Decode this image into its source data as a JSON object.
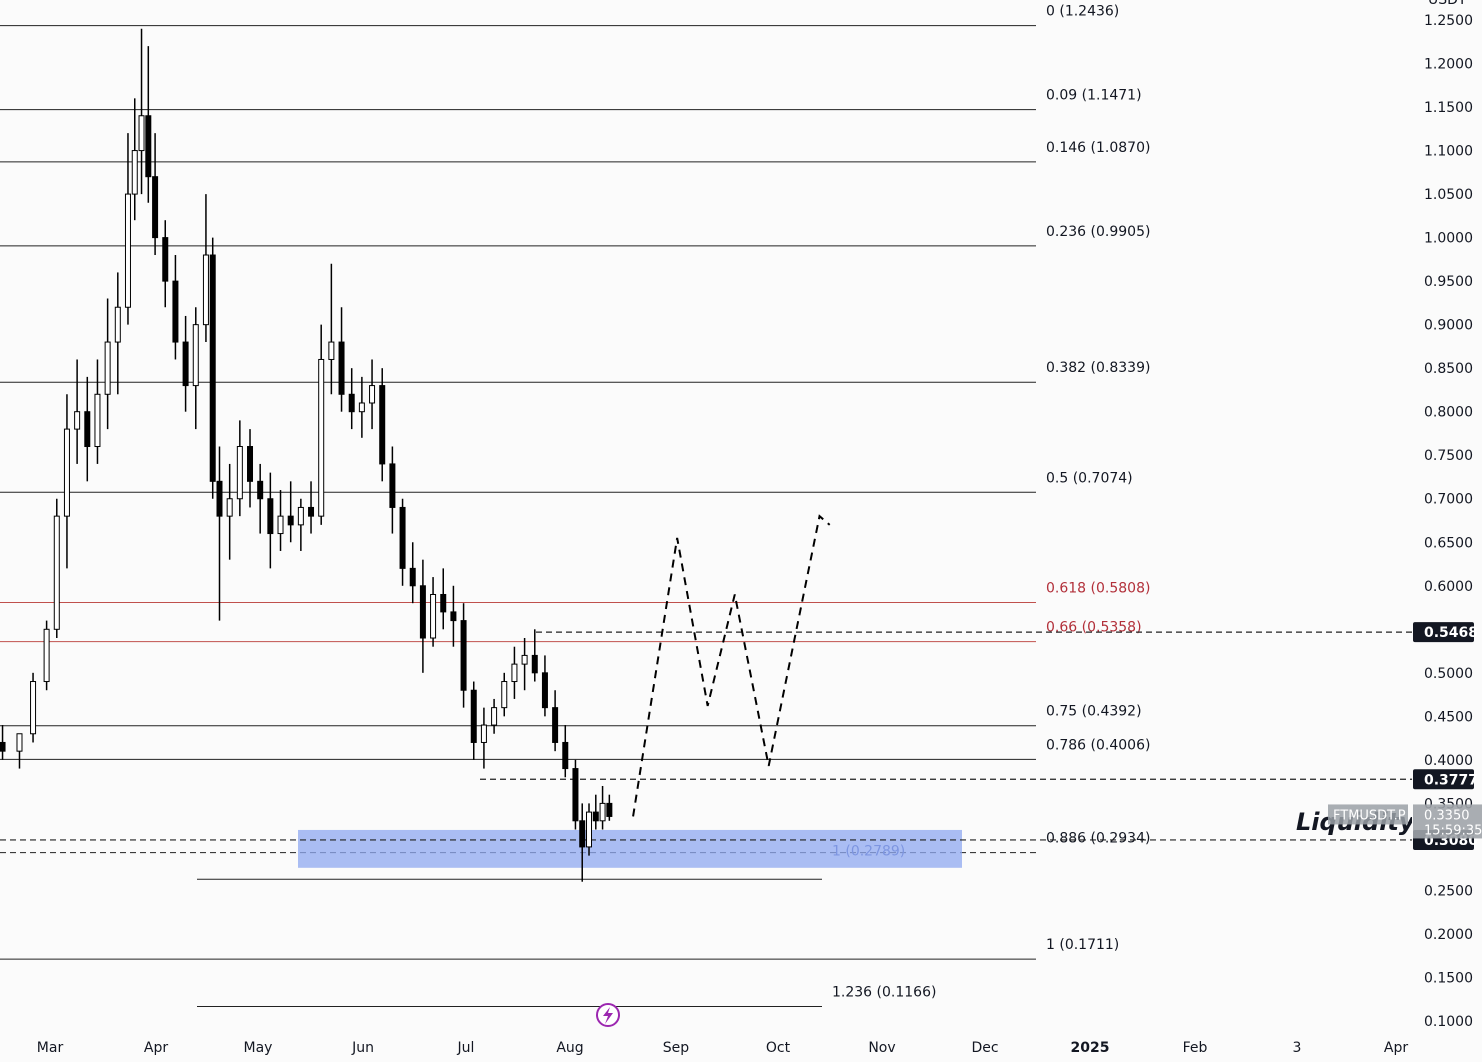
{
  "chart_data": {
    "type": "candlestick",
    "symbol": "FTMUSDT.P",
    "current_price": "0.3350",
    "countdown": "15:59:35",
    "quote_currency": "USDT",
    "y_axis": {
      "ticks": [
        "1.2500",
        "1.2000",
        "1.1500",
        "1.1000",
        "1.0500",
        "1.0000",
        "0.9500",
        "0.9000",
        "0.8500",
        "0.8000",
        "0.7500",
        "0.7000",
        "0.6500",
        "0.6000",
        "0.5500",
        "0.5000",
        "0.4500",
        "0.4000",
        "0.3500",
        "0.3000",
        "0.2500",
        "0.2000",
        "0.1500",
        "0.1000"
      ],
      "ylim": [
        0.09,
        1.26
      ],
      "hidden_ticks": [
        "0.5500",
        "0.3000"
      ]
    },
    "x_axis": {
      "labels": [
        "Mar",
        "Apr",
        "May",
        "Jun",
        "Jul",
        "Aug",
        "Sep",
        "Oct",
        "Nov",
        "Dec",
        "2025",
        "Feb",
        "3",
        "Apr"
      ],
      "bold_labels": [
        "2025"
      ]
    },
    "fib_levels": [
      {
        "ratio": "0",
        "value": 1.2436,
        "label": "0 (1.2436)",
        "color": "#131722"
      },
      {
        "ratio": "0.09",
        "value": 1.1471,
        "label": "0.09 (1.1471)",
        "color": "#131722"
      },
      {
        "ratio": "0.146",
        "value": 1.087,
        "label": "0.146 (1.0870)",
        "color": "#131722"
      },
      {
        "ratio": "0.236",
        "value": 0.9905,
        "label": "0.236 (0.9905)",
        "color": "#131722"
      },
      {
        "ratio": "0.382",
        "value": 0.8339,
        "label": "0.382 (0.8339)",
        "color": "#131722"
      },
      {
        "ratio": "0.5",
        "value": 0.7074,
        "label": "0.5 (0.7074)",
        "color": "#131722"
      },
      {
        "ratio": "0.618",
        "value": 0.5808,
        "label": "0.618 (0.5808)",
        "color": "#b2303a"
      },
      {
        "ratio": "0.66",
        "value": 0.5358,
        "label": "0.66 (0.5358)",
        "color": "#b2303a"
      },
      {
        "ratio": "0.75",
        "value": 0.4392,
        "label": "0.75 (0.4392)",
        "color": "#131722"
      },
      {
        "ratio": "0.786",
        "value": 0.4006,
        "label": "0.786 (0.4006)",
        "color": "#131722"
      },
      {
        "ratio": "0.886",
        "value": 0.2934,
        "label": "0.886 (0.2934)",
        "color": "#131722"
      },
      {
        "ratio": "1",
        "value": 0.1711,
        "label": "1 (0.1711)",
        "color": "#131722"
      }
    ],
    "second_fib_levels": [
      {
        "ratio": "1",
        "value": 0.2789,
        "label": "1 (0.2789)",
        "color": "#4a5db0"
      },
      {
        "ratio": "1.236",
        "value": 0.1166,
        "label": "1.236 (0.1166)",
        "color": "#131722"
      }
    ],
    "horizontal_levels": [
      {
        "value": 0.5468,
        "label": "0.5468"
      },
      {
        "value": 0.3777,
        "label": "0.3777"
      },
      {
        "value": 0.308,
        "label": "0.3080"
      }
    ],
    "demand_zone": {
      "top": 0.308,
      "bottom": 0.276,
      "color": "#8fa8f0"
    },
    "annotation": "Liquidity",
    "projection_path": [
      {
        "date": "2024-08-20",
        "price": 0.335
      },
      {
        "date": "2024-09-02",
        "price": 0.655
      },
      {
        "date": "2024-09-11",
        "price": 0.462
      },
      {
        "date": "2024-09-19",
        "price": 0.59
      },
      {
        "date": "2024-09-29",
        "price": 0.393
      },
      {
        "date": "2024-10-14",
        "price": 0.68
      },
      {
        "date": "2024-10-17",
        "price": 0.67
      }
    ],
    "candles_ohlc_approx": [
      [
        "2024-02-01",
        0.42,
        0.44,
        0.39,
        0.41
      ],
      [
        "2024-02-06",
        0.41,
        0.43,
        0.39,
        0.4
      ],
      [
        "2024-02-11",
        0.4,
        0.43,
        0.39,
        0.42
      ],
      [
        "2024-02-16",
        0.42,
        0.44,
        0.4,
        0.41
      ],
      [
        "2024-02-21",
        0.41,
        0.43,
        0.39,
        0.43
      ],
      [
        "2024-02-25",
        0.43,
        0.5,
        0.42,
        0.49
      ],
      [
        "2024-02-29",
        0.49,
        0.56,
        0.48,
        0.55
      ],
      [
        "2024-03-03",
        0.55,
        0.7,
        0.54,
        0.68
      ],
      [
        "2024-03-06",
        0.68,
        0.82,
        0.62,
        0.78
      ],
      [
        "2024-03-09",
        0.78,
        0.86,
        0.74,
        0.8
      ],
      [
        "2024-03-12",
        0.8,
        0.84,
        0.72,
        0.76
      ],
      [
        "2024-03-15",
        0.76,
        0.86,
        0.74,
        0.82
      ],
      [
        "2024-03-18",
        0.82,
        0.93,
        0.78,
        0.88
      ],
      [
        "2024-03-21",
        0.88,
        0.96,
        0.82,
        0.92
      ],
      [
        "2024-03-24",
        0.92,
        1.12,
        0.9,
        1.05
      ],
      [
        "2024-03-26",
        1.05,
        1.16,
        1.02,
        1.1
      ],
      [
        "2024-03-28",
        1.1,
        1.24,
        1.05,
        1.14
      ],
      [
        "2024-03-30",
        1.14,
        1.22,
        1.04,
        1.07
      ],
      [
        "2024-04-01",
        1.07,
        1.12,
        0.98,
        1.0
      ],
      [
        "2024-04-04",
        1.0,
        1.02,
        0.92,
        0.95
      ],
      [
        "2024-04-07",
        0.95,
        0.98,
        0.86,
        0.88
      ],
      [
        "2024-04-10",
        0.88,
        0.91,
        0.8,
        0.83
      ],
      [
        "2024-04-13",
        0.83,
        0.92,
        0.78,
        0.9
      ],
      [
        "2024-04-16",
        0.9,
        1.05,
        0.88,
        0.98
      ],
      [
        "2024-04-18",
        0.98,
        1.0,
        0.7,
        0.72
      ],
      [
        "2024-04-20",
        0.72,
        0.76,
        0.56,
        0.68
      ],
      [
        "2024-04-23",
        0.68,
        0.74,
        0.63,
        0.7
      ],
      [
        "2024-04-26",
        0.7,
        0.79,
        0.68,
        0.76
      ],
      [
        "2024-04-29",
        0.76,
        0.78,
        0.69,
        0.72
      ],
      [
        "2024-05-02",
        0.72,
        0.74,
        0.66,
        0.7
      ],
      [
        "2024-05-05",
        0.7,
        0.73,
        0.62,
        0.66
      ],
      [
        "2024-05-08",
        0.66,
        0.71,
        0.64,
        0.68
      ],
      [
        "2024-05-11",
        0.68,
        0.72,
        0.65,
        0.67
      ],
      [
        "2024-05-14",
        0.67,
        0.7,
        0.64,
        0.69
      ],
      [
        "2024-05-17",
        0.69,
        0.72,
        0.66,
        0.68
      ],
      [
        "2024-05-20",
        0.68,
        0.9,
        0.67,
        0.86
      ],
      [
        "2024-05-23",
        0.86,
        0.97,
        0.82,
        0.88
      ],
      [
        "2024-05-26",
        0.88,
        0.92,
        0.8,
        0.82
      ],
      [
        "2024-05-29",
        0.82,
        0.85,
        0.78,
        0.8
      ],
      [
        "2024-06-01",
        0.8,
        0.84,
        0.77,
        0.81
      ],
      [
        "2024-06-04",
        0.81,
        0.86,
        0.78,
        0.83
      ],
      [
        "2024-06-07",
        0.83,
        0.85,
        0.72,
        0.74
      ],
      [
        "2024-06-10",
        0.74,
        0.76,
        0.66,
        0.69
      ],
      [
        "2024-06-13",
        0.69,
        0.7,
        0.6,
        0.62
      ],
      [
        "2024-06-16",
        0.62,
        0.65,
        0.58,
        0.6
      ],
      [
        "2024-06-19",
        0.6,
        0.63,
        0.5,
        0.54
      ],
      [
        "2024-06-22",
        0.54,
        0.61,
        0.53,
        0.59
      ],
      [
        "2024-06-25",
        0.59,
        0.62,
        0.55,
        0.57
      ],
      [
        "2024-06-28",
        0.57,
        0.6,
        0.53,
        0.56
      ],
      [
        "2024-07-01",
        0.56,
        0.58,
        0.46,
        0.48
      ],
      [
        "2024-07-04",
        0.48,
        0.49,
        0.4,
        0.42
      ],
      [
        "2024-07-07",
        0.42,
        0.46,
        0.39,
        0.44
      ],
      [
        "2024-07-10",
        0.44,
        0.47,
        0.43,
        0.46
      ],
      [
        "2024-07-13",
        0.46,
        0.5,
        0.45,
        0.49
      ],
      [
        "2024-07-16",
        0.49,
        0.53,
        0.47,
        0.51
      ],
      [
        "2024-07-19",
        0.51,
        0.54,
        0.48,
        0.52
      ],
      [
        "2024-07-22",
        0.52,
        0.55,
        0.49,
        0.5
      ],
      [
        "2024-07-25",
        0.5,
        0.52,
        0.45,
        0.46
      ],
      [
        "2024-07-28",
        0.46,
        0.48,
        0.41,
        0.42
      ],
      [
        "2024-07-31",
        0.42,
        0.44,
        0.38,
        0.39
      ],
      [
        "2024-08-03",
        0.39,
        0.4,
        0.32,
        0.33
      ],
      [
        "2024-08-05",
        0.33,
        0.35,
        0.26,
        0.3
      ],
      [
        "2024-08-07",
        0.3,
        0.35,
        0.29,
        0.34
      ],
      [
        "2024-08-09",
        0.34,
        0.36,
        0.32,
        0.33
      ],
      [
        "2024-08-11",
        0.33,
        0.37,
        0.32,
        0.35
      ],
      [
        "2024-08-13",
        0.35,
        0.36,
        0.33,
        0.335
      ]
    ]
  }
}
